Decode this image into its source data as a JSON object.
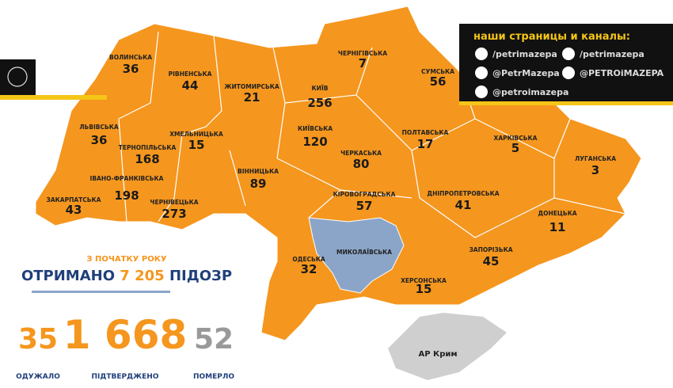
{
  "header": {
    "title": "наши страницы и каналы:",
    "links": [
      "/petrimazepa",
      "/petrimazepa",
      "@PetrMazepa",
      "@PETROiMAZEPA",
      "@petroimazepa"
    ]
  },
  "regions": [
    {
      "name": "ВОЛИНСЬКА",
      "value": 36
    },
    {
      "name": "РІВНЕНСЬКА",
      "value": 44
    },
    {
      "name": "ЖИТОМИРСЬКА",
      "value": 21
    },
    {
      "name": "КИЇВ",
      "value": 256
    },
    {
      "name": "ЧЕРНІГІВСЬКА",
      "value": 7
    },
    {
      "name": "СУМСЬКА",
      "value": 56
    },
    {
      "name": "ЛЬВІВСЬКА",
      "value": 36
    },
    {
      "name": "ХМЕЛЬНИЦЬКА",
      "value": 15
    },
    {
      "name": "ТЕРНОПІЛЬСЬКА",
      "value": 168
    },
    {
      "name": "КИЇВСЬКА",
      "value": 120
    },
    {
      "name": "ПОЛТАВСЬКА",
      "value": 17
    },
    {
      "name": "ХАРКІВСЬКА",
      "value": 5
    },
    {
      "name": "ЛУГАНСЬКА",
      "value": 3
    },
    {
      "name": "ЗАКАРПАТСЬКА",
      "value": 43
    },
    {
      "name": "ІВАНО-ФРАНКІВСЬКА",
      "value": 198
    },
    {
      "name": "ЧЕРНІВЕЦЬКА",
      "value": 273
    },
    {
      "name": "ВІННИЦЬКА",
      "value": 89
    },
    {
      "name": "ЧЕРКАСЬКА",
      "value": 80
    },
    {
      "name": "КІРОВОГРАДСЬКА",
      "value": 57
    },
    {
      "name": "ДНІПРОПЕТРОВСЬКА",
      "value": 41
    },
    {
      "name": "ДОНЕЦЬКА",
      "value": 11
    },
    {
      "name": "ЗАПОРІЗЬКА",
      "value": 45
    },
    {
      "name": "МИКОЛАЇВСЬКА"
    },
    {
      "name": "ОДЕСЬКА",
      "value": 32
    },
    {
      "name": "ХЕРСОНСЬКА",
      "value": 15
    },
    {
      "name": "АР Крим"
    }
  ],
  "summary": {
    "subtitle": "З ПОЧАТКУ РОКУ",
    "headline": "ОТРИМАНО",
    "total": "7 205",
    "headline_end": "ПІДОЗР",
    "stats": [
      {
        "value": "35",
        "label": "ОДУЖАЛО"
      },
      {
        "value": "1 668",
        "label": "ПІДТВЕРДЖЕНО"
      },
      {
        "value": "52",
        "label": "ПОМЕРЛО"
      }
    ]
  }
}
